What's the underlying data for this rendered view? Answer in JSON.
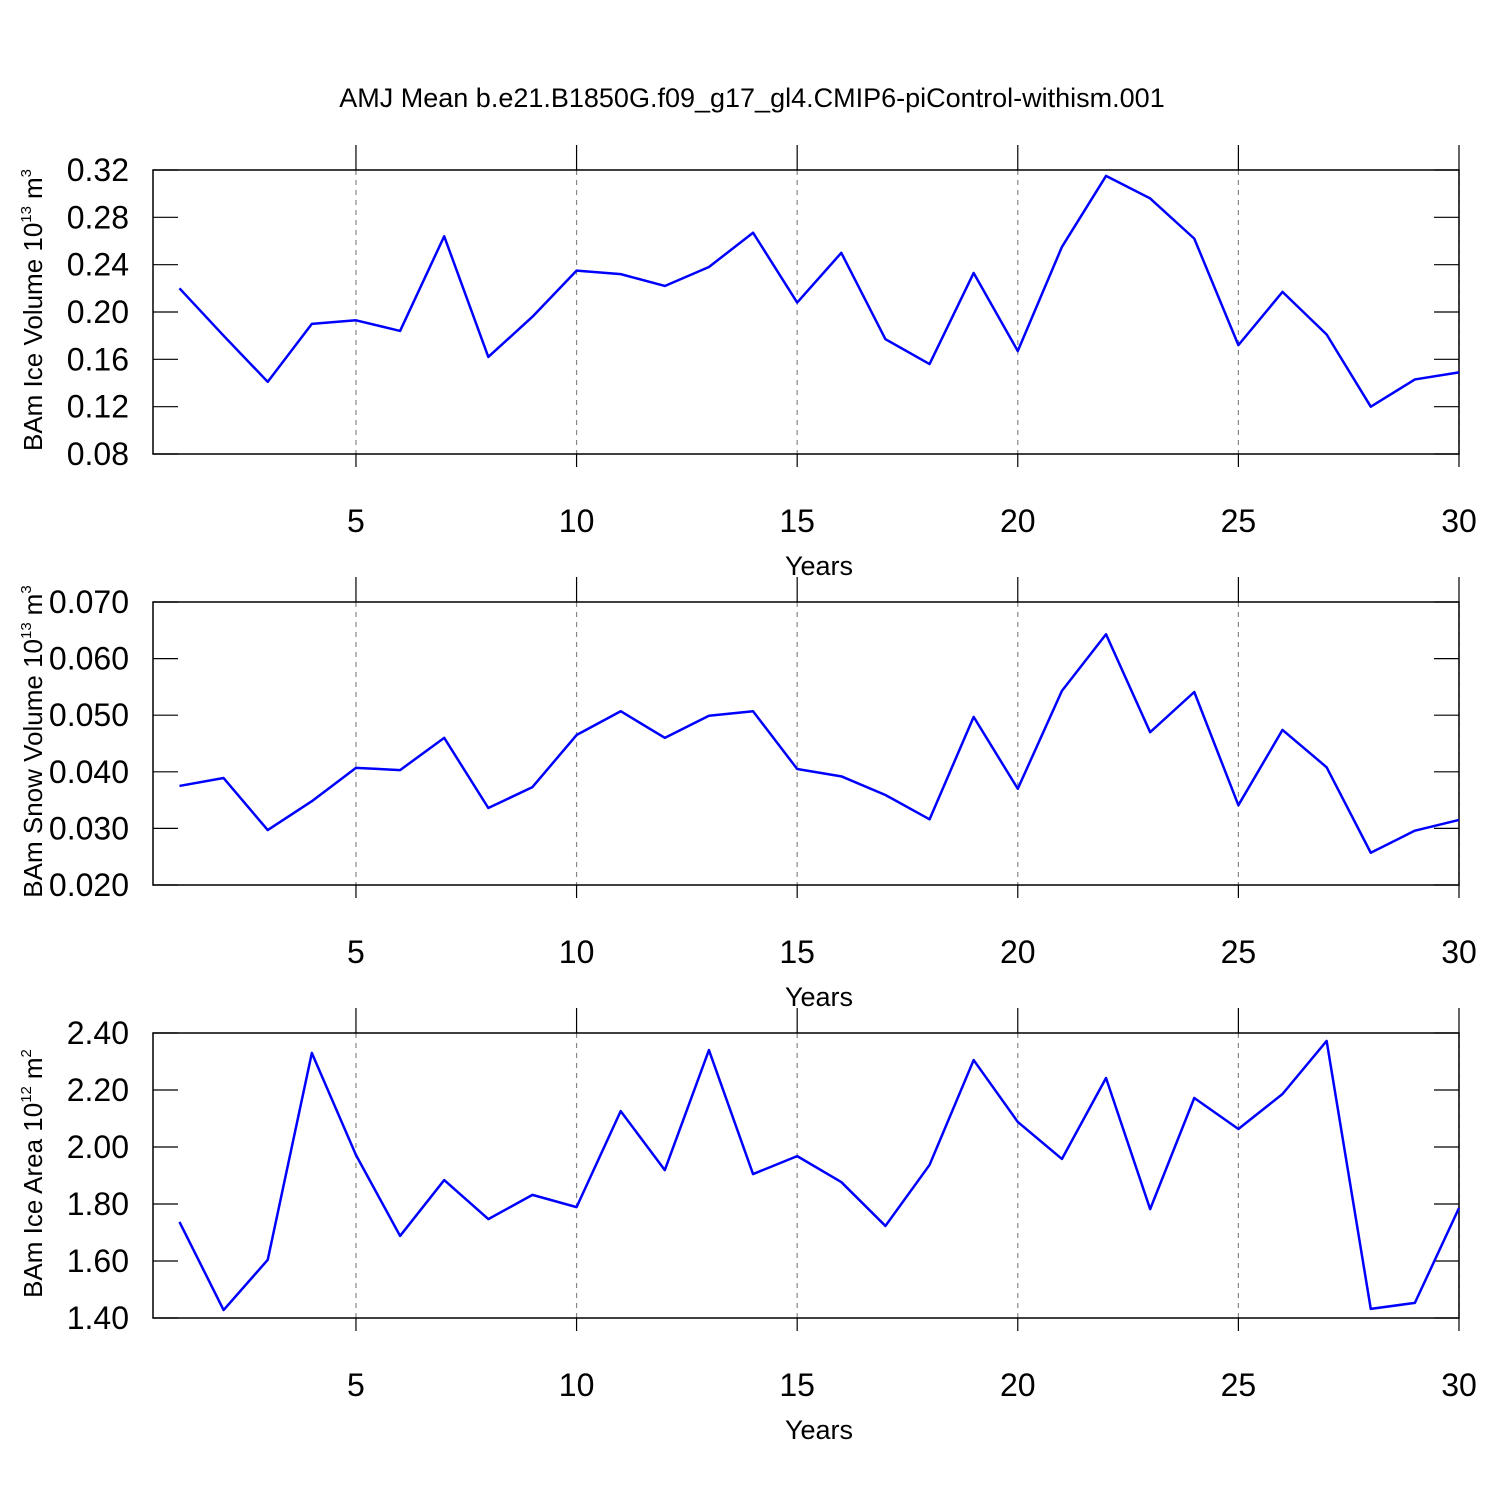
{
  "title": "AMJ Mean b.e21.B1850G.f09_g17_gl4.CMIP6-piControl-withism.001",
  "chart_data": [
    {
      "type": "line",
      "xlabel": "Years",
      "ylabel": [
        "BAm Ice Volume 10",
        "13",
        "m",
        "3"
      ],
      "x": [
        1,
        2,
        3,
        4,
        5,
        6,
        7,
        8,
        9,
        10,
        11,
        12,
        13,
        14,
        15,
        16,
        17,
        18,
        19,
        20,
        21,
        22,
        23,
        24,
        25,
        26,
        27,
        28,
        29,
        30
      ],
      "values": [
        0.22,
        0.18,
        0.141,
        0.19,
        0.193,
        0.184,
        0.264,
        0.162,
        0.196,
        0.235,
        0.232,
        0.222,
        0.238,
        0.267,
        0.208,
        0.25,
        0.177,
        0.156,
        0.233,
        0.167,
        0.255,
        0.315,
        0.296,
        0.262,
        0.172,
        0.217,
        0.181,
        0.12,
        0.143,
        0.149
      ],
      "color": "#0000ff",
      "xlim": [
        0.4,
        30
      ],
      "xticks": [
        5,
        10,
        15,
        20,
        25,
        30
      ],
      "ylim": [
        0.08,
        0.32
      ],
      "yticks": [
        0.08,
        0.12,
        0.16,
        {
          "value": 0.2,
          "label": "0.20"
        },
        0.24,
        0.28,
        0.32
      ],
      "grid": true
    },
    {
      "type": "line",
      "xlabel": "Years",
      "ylabel": [
        "BAm Snow Volume 10",
        "13",
        "m",
        "3"
      ],
      "x": [
        1,
        2,
        3,
        4,
        5,
        6,
        7,
        8,
        9,
        10,
        11,
        12,
        13,
        14,
        15,
        16,
        17,
        18,
        19,
        20,
        21,
        22,
        23,
        24,
        25,
        26,
        27,
        28,
        29,
        30
      ],
      "values": [
        0.0375,
        0.0389,
        0.0297,
        0.0348,
        0.0407,
        0.0403,
        0.046,
        0.0336,
        0.0373,
        0.0465,
        0.0507,
        0.046,
        0.0499,
        0.0507,
        0.0405,
        0.0392,
        0.0359,
        0.0316,
        0.0497,
        0.037,
        0.0543,
        0.0643,
        0.047,
        0.0541,
        0.0341,
        0.0474,
        0.0408,
        0.0257,
        0.0296,
        0.0315
      ],
      "color": "#0000ff",
      "xlim": [
        0.4,
        30
      ],
      "xticks": [
        5,
        10,
        15,
        20,
        25,
        30
      ],
      "ylim": [
        0.02,
        0.07
      ],
      "yticks": [
        {
          "value": 0.02,
          "label": "0.020"
        },
        {
          "value": 0.03,
          "label": "0.030"
        },
        {
          "value": 0.04,
          "label": "0.040"
        },
        {
          "value": 0.05,
          "label": "0.050"
        },
        {
          "value": 0.06,
          "label": "0.060"
        },
        {
          "value": 0.07,
          "label": "0.070"
        }
      ],
      "grid": true
    },
    {
      "type": "line",
      "xlabel": "Years",
      "ylabel": [
        "BAm Ice Area 10",
        "12",
        "m",
        "2"
      ],
      "x": [
        1,
        2,
        3,
        4,
        5,
        6,
        7,
        8,
        9,
        10,
        11,
        12,
        13,
        14,
        15,
        16,
        17,
        18,
        19,
        20,
        21,
        22,
        23,
        24,
        25,
        26,
        27,
        28,
        29,
        30
      ],
      "values": [
        1.737,
        1.428,
        1.604,
        2.33,
        1.972,
        1.688,
        1.884,
        1.747,
        1.832,
        1.789,
        2.126,
        1.919,
        2.34,
        1.905,
        1.968,
        1.877,
        1.723,
        1.937,
        2.305,
        2.088,
        1.958,
        2.242,
        1.782,
        2.172,
        2.063,
        2.186,
        2.372,
        1.432,
        1.453,
        1.786
      ],
      "color": "#0000ff",
      "xlim": [
        0.4,
        30
      ],
      "xticks": [
        5,
        10,
        15,
        20,
        25,
        30
      ],
      "ylim": [
        1.4,
        2.4
      ],
      "yticks": [
        {
          "value": 1.4,
          "label": "1.40"
        },
        {
          "value": 1.6,
          "label": "1.60"
        },
        {
          "value": 1.8,
          "label": "1.80"
        },
        {
          "value": 2.0,
          "label": "2.00"
        },
        {
          "value": 2.2,
          "label": "2.20"
        },
        {
          "value": 2.4,
          "label": "2.40"
        }
      ],
      "grid": true
    }
  ]
}
